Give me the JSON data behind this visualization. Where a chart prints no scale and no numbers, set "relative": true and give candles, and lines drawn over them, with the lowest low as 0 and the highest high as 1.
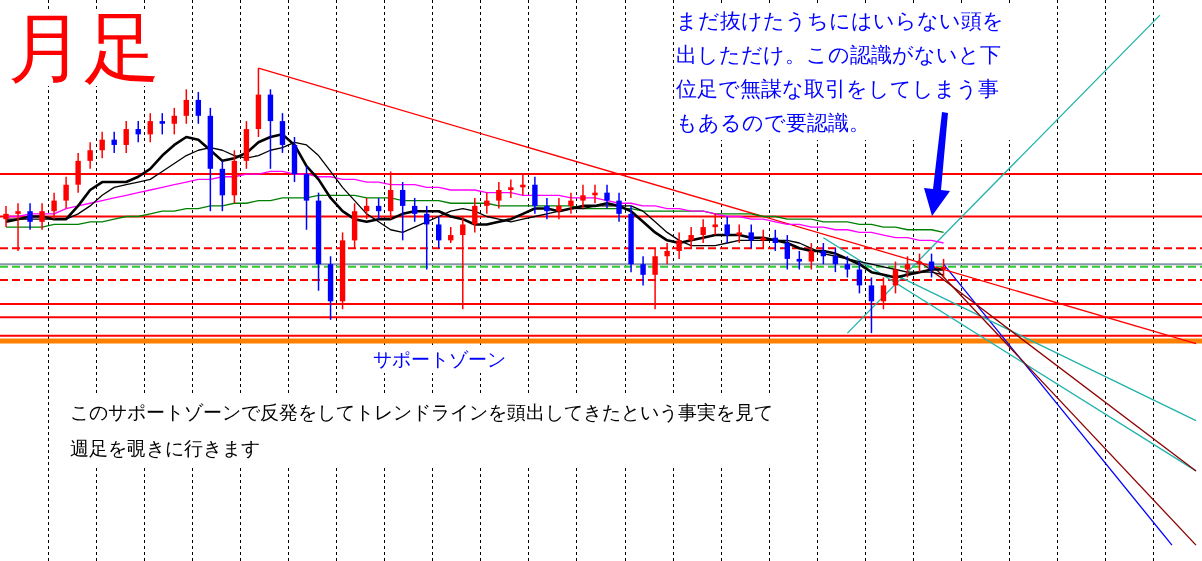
{
  "chart_data": {
    "type": "candlestick",
    "title": "月足",
    "relative": true,
    "grid": "x",
    "legend": false,
    "categories": [
      null,
      null,
      null,
      null,
      null,
      null,
      null,
      null,
      null,
      null,
      null,
      null,
      null,
      null,
      null,
      null,
      null,
      null,
      null,
      null,
      null,
      null,
      null,
      null,
      null,
      null,
      null,
      null,
      null,
      null,
      null,
      null,
      null,
      null,
      null,
      null,
      null,
      null,
      null,
      null,
      null,
      null,
      null,
      null,
      null,
      null,
      null,
      null,
      null,
      null,
      null,
      null,
      null,
      null,
      null,
      null,
      null,
      null,
      null,
      null,
      null,
      null,
      null,
      null,
      null,
      null,
      null,
      null,
      null,
      null,
      null,
      null,
      null,
      null,
      null,
      null,
      null,
      null,
      null,
      null,
      null,
      null,
      null,
      null,
      null,
      null,
      null,
      null,
      null,
      null,
      null,
      null,
      null,
      null,
      null,
      null,
      null,
      null,
      null,
      null
    ],
    "ohlc": [
      [
        0.43,
        0.48,
        0.4,
        0.45
      ],
      [
        0.45,
        0.49,
        0.31,
        0.46
      ],
      [
        0.46,
        0.49,
        0.39,
        0.42
      ],
      [
        0.42,
        0.49,
        0.39,
        0.46
      ],
      [
        0.46,
        0.53,
        0.43,
        0.5
      ],
      [
        0.5,
        0.59,
        0.47,
        0.56
      ],
      [
        0.56,
        0.68,
        0.53,
        0.65
      ],
      [
        0.65,
        0.72,
        0.62,
        0.69
      ],
      [
        0.69,
        0.76,
        0.66,
        0.73
      ],
      [
        0.73,
        0.76,
        0.68,
        0.71
      ],
      [
        0.71,
        0.8,
        0.68,
        0.77
      ],
      [
        0.77,
        0.8,
        0.72,
        0.75
      ],
      [
        0.75,
        0.83,
        0.72,
        0.8
      ],
      [
        0.8,
        0.83,
        0.75,
        0.79
      ],
      [
        0.79,
        0.85,
        0.75,
        0.82
      ],
      [
        0.82,
        0.92,
        0.79,
        0.88
      ],
      [
        0.88,
        0.91,
        0.79,
        0.82
      ],
      [
        0.82,
        0.85,
        0.46,
        0.62
      ],
      [
        0.62,
        0.65,
        0.46,
        0.52
      ],
      [
        0.52,
        0.69,
        0.49,
        0.65
      ],
      [
        0.65,
        0.8,
        0.62,
        0.77
      ],
      [
        0.77,
        1.0,
        0.74,
        0.9
      ],
      [
        0.9,
        0.92,
        0.62,
        0.8
      ],
      [
        0.8,
        0.83,
        0.68,
        0.71
      ],
      [
        0.71,
        0.74,
        0.57,
        0.6
      ],
      [
        0.6,
        0.63,
        0.39,
        0.5
      ],
      [
        0.5,
        0.53,
        0.16,
        0.26
      ],
      [
        0.26,
        0.29,
        0.05,
        0.12
      ],
      [
        0.12,
        0.38,
        0.09,
        0.35
      ],
      [
        0.35,
        0.49,
        0.32,
        0.46
      ],
      [
        0.46,
        0.51,
        0.43,
        0.48
      ],
      [
        0.48,
        0.51,
        0.43,
        0.46
      ],
      [
        0.46,
        0.61,
        0.43,
        0.54
      ],
      [
        0.54,
        0.57,
        0.35,
        0.48
      ],
      [
        0.48,
        0.51,
        0.42,
        0.45
      ],
      [
        0.45,
        0.48,
        0.24,
        0.41
      ],
      [
        0.41,
        0.44,
        0.32,
        0.35
      ],
      [
        0.35,
        0.4,
        0.34,
        0.37
      ],
      [
        0.37,
        0.44,
        0.09,
        0.41
      ],
      [
        0.41,
        0.51,
        0.38,
        0.48
      ],
      [
        0.48,
        0.53,
        0.45,
        0.5
      ],
      [
        0.5,
        0.57,
        0.47,
        0.54
      ],
      [
        0.54,
        0.58,
        0.51,
        0.55
      ],
      [
        0.55,
        0.6,
        0.52,
        0.56
      ],
      [
        0.56,
        0.59,
        0.45,
        0.48
      ],
      [
        0.48,
        0.51,
        0.43,
        0.46
      ],
      [
        0.46,
        0.51,
        0.43,
        0.48
      ],
      [
        0.48,
        0.53,
        0.45,
        0.5
      ],
      [
        0.5,
        0.56,
        0.47,
        0.52
      ],
      [
        0.52,
        0.56,
        0.49,
        0.53
      ],
      [
        0.53,
        0.56,
        0.47,
        0.5
      ],
      [
        0.5,
        0.53,
        0.42,
        0.45
      ],
      [
        0.45,
        0.48,
        0.23,
        0.26
      ],
      [
        0.26,
        0.29,
        0.18,
        0.22
      ],
      [
        0.22,
        0.32,
        0.09,
        0.29
      ],
      [
        0.29,
        0.34,
        0.26,
        0.31
      ],
      [
        0.31,
        0.38,
        0.28,
        0.35
      ],
      [
        0.35,
        0.4,
        0.32,
        0.37
      ],
      [
        0.37,
        0.43,
        0.34,
        0.4
      ],
      [
        0.4,
        0.45,
        0.37,
        0.41
      ],
      [
        0.41,
        0.44,
        0.34,
        0.37
      ],
      [
        0.37,
        0.41,
        0.34,
        0.38
      ],
      [
        0.38,
        0.41,
        0.32,
        0.35
      ],
      [
        0.35,
        0.39,
        0.32,
        0.36
      ],
      [
        0.36,
        0.39,
        0.31,
        0.34
      ],
      [
        0.34,
        0.37,
        0.24,
        0.28
      ],
      [
        0.28,
        0.31,
        0.24,
        0.27
      ],
      [
        0.27,
        0.34,
        0.24,
        0.31
      ],
      [
        0.31,
        0.34,
        0.26,
        0.29
      ],
      [
        0.29,
        0.32,
        0.23,
        0.26
      ],
      [
        0.26,
        0.29,
        0.21,
        0.24
      ],
      [
        0.24,
        0.27,
        0.15,
        0.18
      ],
      [
        0.18,
        0.21,
        0.0,
        0.12
      ],
      [
        0.12,
        0.21,
        0.09,
        0.18
      ],
      [
        0.18,
        0.27,
        0.15,
        0.24
      ],
      [
        0.24,
        0.29,
        0.21,
        0.26
      ],
      [
        0.26,
        0.3,
        0.23,
        0.27
      ],
      [
        0.27,
        0.3,
        0.21,
        0.24
      ],
      [
        0.24,
        0.28,
        0.21,
        0.25
      ],
      null,
      null,
      null,
      null,
      null,
      null,
      null,
      null,
      null,
      null,
      null,
      null,
      null,
      null,
      null,
      null,
      null,
      null,
      null,
      null,
      null
    ],
    "colors": [
      "#ff0000",
      "#ff0000",
      "#0000ff",
      "#ff0000",
      "#ff0000",
      "#ff0000",
      "#ff0000",
      "#ff0000",
      "#ff0000",
      "#0000ff",
      "#ff0000",
      "#0000ff",
      "#ff0000",
      "#0000ff",
      "#ff0000",
      "#ff0000",
      "#0000ff",
      "#0000ff",
      "#0000ff",
      "#ff0000",
      "#ff0000",
      "#ff0000",
      "#0000ff",
      "#0000ff",
      "#0000ff",
      "#0000ff",
      "#0000ff",
      "#0000ff",
      "#ff0000",
      "#ff0000",
      "#ff0000",
      "#0000ff",
      "#ff0000",
      "#0000ff",
      "#0000ff",
      "#0000ff",
      "#0000ff",
      "#ff0000",
      "#ff0000",
      "#ff0000",
      "#ff0000",
      "#ff0000",
      "#ff0000",
      "#ff0000",
      "#0000ff",
      "#0000ff",
      "#ff0000",
      "#ff0000",
      "#ff0000",
      "#ff0000",
      "#0000ff",
      "#0000ff",
      "#0000ff",
      "#0000ff",
      "#ff0000",
      "#ff0000",
      "#ff0000",
      "#ff0000",
      "#ff0000",
      "#ff0000",
      "#0000ff",
      "#ff0000",
      "#0000ff",
      "#ff0000",
      "#0000ff",
      "#0000ff",
      "#0000ff",
      "#ff0000",
      "#0000ff",
      "#0000ff",
      "#0000ff",
      "#0000ff",
      "#0000ff",
      "#ff0000",
      "#ff0000",
      "#ff0000",
      "#ff0000",
      "#0000ff",
      "#ff0000",
      null,
      null,
      null,
      null,
      null,
      null,
      null,
      null,
      null,
      null,
      null,
      null,
      null,
      null,
      null,
      null,
      null,
      null,
      null,
      null,
      null
    ],
    "series": [
      {
        "type": "line",
        "color": "#000000",
        "values": [
          0.42,
          0.43,
          0.44,
          0.44,
          0.43,
          0.43,
          0.48,
          0.54,
          0.57,
          0.57,
          0.57,
          0.59,
          0.62,
          0.67,
          0.71,
          0.74,
          0.73,
          0.69,
          0.65,
          0.66,
          0.68,
          0.72,
          0.74,
          0.75,
          0.71,
          0.63,
          0.58,
          0.51,
          0.46,
          0.43,
          0.42,
          0.43,
          0.43,
          0.45,
          0.46,
          0.46,
          0.46,
          0.44,
          0.43,
          0.41,
          0.41,
          0.42,
          0.43,
          0.45,
          0.47,
          0.47,
          0.46,
          0.47,
          0.48,
          0.48,
          0.49,
          0.48,
          0.46,
          0.42,
          0.38,
          0.35,
          0.34,
          0.35,
          0.36,
          0.37,
          0.37,
          0.37,
          0.36,
          0.36,
          0.35,
          0.34,
          0.32,
          0.31,
          0.31,
          0.3,
          0.28,
          0.26,
          0.23,
          0.22,
          0.21,
          0.22,
          0.23,
          0.24,
          0.24,
          null,
          null,
          null,
          null,
          null,
          null,
          null,
          null,
          null,
          null,
          null,
          null,
          null,
          null,
          null,
          null,
          null,
          null,
          null,
          null,
          null
        ]
      },
      {
        "type": "line",
        "color": "#000000",
        "values": [
          0.43,
          0.43,
          0.43,
          0.43,
          0.43,
          0.43,
          0.45,
          0.48,
          0.52,
          0.55,
          0.56,
          0.57,
          0.58,
          0.61,
          0.64,
          0.67,
          0.69,
          0.7,
          0.69,
          0.67,
          0.66,
          0.67,
          0.69,
          0.7,
          0.72,
          0.71,
          0.67,
          0.61,
          0.55,
          0.5,
          0.45,
          0.42,
          0.39,
          0.38,
          0.4,
          0.42,
          0.44,
          0.46,
          0.47,
          0.46,
          0.44,
          0.43,
          0.42,
          0.43,
          0.44,
          0.45,
          0.46,
          0.47,
          0.47,
          0.48,
          0.48,
          0.48,
          0.48,
          0.46,
          0.42,
          0.38,
          0.35,
          0.33,
          0.33,
          0.33,
          0.34,
          0.35,
          0.35,
          0.35,
          0.35,
          0.35,
          0.34,
          0.32,
          0.3,
          0.29,
          0.28,
          0.27,
          0.26,
          0.25,
          0.24,
          0.23,
          0.23,
          0.23,
          0.22,
          null,
          null,
          null,
          null,
          null,
          null,
          null,
          null,
          null,
          null,
          null,
          null,
          null,
          null,
          null,
          null,
          null,
          null,
          null,
          null,
          null
        ]
      },
      {
        "type": "line",
        "color": "#ff00ff",
        "values": [
          0.44,
          0.44,
          0.45,
          0.45,
          0.45,
          0.47,
          0.48,
          0.49,
          0.5,
          0.51,
          0.52,
          0.53,
          0.54,
          0.55,
          0.56,
          0.57,
          0.58,
          0.58,
          0.59,
          0.59,
          0.6,
          0.6,
          0.61,
          0.61,
          0.6,
          0.6,
          0.59,
          0.59,
          0.58,
          0.58,
          0.57,
          0.57,
          0.56,
          0.56,
          0.56,
          0.55,
          0.55,
          0.54,
          0.54,
          0.54,
          0.53,
          0.53,
          0.53,
          0.52,
          0.52,
          0.52,
          0.52,
          0.51,
          0.51,
          0.51,
          0.5,
          0.49,
          0.49,
          0.48,
          0.48,
          0.47,
          0.47,
          0.46,
          0.46,
          0.45,
          0.44,
          0.44,
          0.43,
          0.43,
          0.42,
          0.41,
          0.41,
          0.4,
          0.4,
          0.39,
          0.39,
          0.38,
          0.38,
          0.37,
          0.36,
          0.36,
          0.35,
          0.35,
          0.34,
          null,
          null,
          null,
          null,
          null,
          null,
          null,
          null,
          null,
          null,
          null,
          null,
          null,
          null,
          null,
          null,
          null,
          null,
          null,
          null,
          null
        ]
      },
      {
        "type": "line",
        "color": "#008000",
        "values": [
          0.4,
          0.4,
          0.4,
          0.4,
          0.41,
          0.41,
          0.41,
          0.42,
          0.42,
          0.43,
          0.44,
          0.44,
          0.45,
          0.46,
          0.46,
          0.47,
          0.47,
          0.48,
          0.48,
          0.49,
          0.49,
          0.5,
          0.5,
          0.51,
          0.51,
          0.51,
          0.52,
          0.52,
          0.52,
          0.52,
          0.51,
          0.51,
          0.51,
          0.5,
          0.5,
          0.5,
          0.5,
          0.49,
          0.49,
          0.49,
          0.49,
          0.48,
          0.48,
          0.48,
          0.48,
          0.48,
          0.48,
          0.48,
          0.47,
          0.47,
          0.47,
          0.47,
          0.47,
          0.46,
          0.46,
          0.46,
          0.46,
          0.46,
          0.46,
          0.45,
          0.45,
          0.45,
          0.45,
          0.44,
          0.44,
          0.43,
          0.43,
          0.43,
          0.42,
          0.42,
          0.42,
          0.41,
          0.41,
          0.4,
          0.4,
          0.39,
          0.39,
          0.39,
          0.38,
          null,
          null,
          null,
          null,
          null,
          null,
          null,
          null,
          null,
          null,
          null,
          null,
          null,
          null,
          null,
          null,
          null,
          null,
          null,
          null,
          null
        ]
      },
      {
        "type": "line",
        "color": "#ff0000",
        "values": [
          null,
          null,
          null,
          null,
          null,
          null,
          null,
          null,
          null,
          null,
          null,
          null,
          null,
          null,
          null,
          null,
          null,
          null,
          null,
          null,
          null,
          1.0,
          null,
          null,
          null,
          null,
          null,
          null,
          null,
          null,
          null,
          null,
          null,
          null,
          null,
          null,
          null,
          null,
          null,
          null,
          null,
          null,
          null,
          null,
          null,
          null,
          null,
          null,
          null,
          null,
          null,
          null,
          null,
          null,
          null,
          null,
          null,
          null,
          null,
          null,
          null,
          null,
          null,
          null,
          null,
          null,
          null,
          null,
          null,
          null,
          null,
          null,
          null,
          null,
          null,
          null,
          null,
          null,
          null,
          null,
          null,
          null,
          null,
          null,
          null,
          null,
          null,
          null,
          null,
          null,
          null,
          null,
          null,
          null,
          null,
          null,
          null,
          null,
          null,
          -0.04
        ]
      },
      {
        "type": "line",
        "color": "#8b0000",
        "values": [
          null,
          null,
          null,
          null,
          null,
          null,
          null,
          null,
          null,
          null,
          null,
          null,
          null,
          null,
          null,
          null,
          null,
          null,
          null,
          null,
          null,
          null,
          null,
          null,
          null,
          null,
          null,
          null,
          null,
          null,
          null,
          null,
          null,
          null,
          null,
          null,
          null,
          null,
          null,
          null,
          null,
          null,
          null,
          null,
          null,
          null,
          null,
          null,
          null,
          null,
          null,
          null,
          null,
          null,
          null,
          null,
          null,
          null,
          null,
          null,
          null,
          null,
          null,
          null,
          null,
          null,
          null,
          null,
          null,
          null,
          null,
          null,
          null,
          null,
          null,
          null,
          0.27,
          null,
          null,
          null,
          null,
          null,
          null,
          null,
          null,
          null,
          null,
          null,
          null,
          null,
          null,
          null,
          null,
          null,
          null,
          null,
          null,
          null,
          null,
          -0.52
        ]
      },
      {
        "type": "line",
        "color": "#8b0000",
        "values": [
          null,
          null,
          null,
          null,
          null,
          null,
          null,
          null,
          null,
          null,
          null,
          null,
          null,
          null,
          null,
          null,
          null,
          null,
          null,
          null,
          null,
          null,
          null,
          null,
          null,
          null,
          null,
          null,
          null,
          null,
          null,
          null,
          null,
          null,
          null,
          null,
          null,
          null,
          null,
          null,
          null,
          null,
          null,
          null,
          null,
          null,
          null,
          null,
          null,
          null,
          null,
          null,
          null,
          null,
          null,
          null,
          null,
          null,
          null,
          null,
          null,
          null,
          null,
          null,
          null,
          null,
          null,
          null,
          null,
          null,
          null,
          null,
          null,
          null,
          null,
          null,
          null,
          0.26,
          null,
          null,
          null,
          null,
          null,
          null,
          null,
          null,
          null,
          null,
          null,
          null,
          null,
          null,
          null,
          null,
          null,
          null,
          null,
          null,
          null,
          -0.8
        ]
      },
      {
        "type": "line",
        "color": "#20b2aa",
        "values": [
          null,
          null,
          null,
          null,
          null,
          null,
          null,
          null,
          null,
          null,
          null,
          null,
          null,
          null,
          null,
          null,
          null,
          null,
          null,
          null,
          null,
          null,
          null,
          null,
          null,
          null,
          null,
          null,
          null,
          null,
          null,
          null,
          null,
          null,
          null,
          null,
          null,
          null,
          null,
          null,
          null,
          null,
          null,
          null,
          null,
          null,
          null,
          null,
          null,
          null,
          null,
          null,
          null,
          null,
          null,
          null,
          null,
          null,
          null,
          null,
          null,
          null,
          null,
          null,
          null,
          null,
          null,
          null,
          null,
          null,
          0.0,
          null,
          null,
          null,
          null,
          null,
          null,
          null,
          null,
          null,
          null,
          null,
          null,
          null,
          null,
          null,
          null,
          null,
          null,
          null,
          null,
          null,
          null,
          null,
          null,
          null,
          1.2,
          null,
          null,
          null
        ]
      },
      {
        "type": "line",
        "color": "#20b2aa",
        "values": [
          null,
          null,
          null,
          null,
          null,
          null,
          null,
          null,
          null,
          null,
          null,
          null,
          null,
          null,
          null,
          null,
          null,
          null,
          null,
          null,
          null,
          null,
          null,
          null,
          null,
          null,
          null,
          null,
          null,
          null,
          null,
          null,
          null,
          null,
          null,
          null,
          null,
          null,
          null,
          null,
          null,
          null,
          null,
          null,
          null,
          null,
          null,
          null,
          null,
          null,
          null,
          null,
          null,
          null,
          null,
          null,
          null,
          null,
          null,
          null,
          null,
          null,
          null,
          null,
          null,
          null,
          null,
          null,
          0.36,
          null,
          null,
          null,
          null,
          null,
          null,
          null,
          null,
          null,
          null,
          null,
          null,
          null,
          null,
          null,
          null,
          null,
          null,
          null,
          null,
          null,
          null,
          null,
          null,
          null,
          null,
          null,
          null,
          null,
          null,
          -0.52
        ]
      },
      {
        "type": "line",
        "color": "#20b2aa",
        "values": [
          null,
          null,
          null,
          null,
          null,
          null,
          null,
          null,
          null,
          null,
          null,
          null,
          null,
          null,
          null,
          null,
          null,
          null,
          null,
          null,
          null,
          null,
          null,
          null,
          null,
          null,
          null,
          null,
          null,
          null,
          null,
          null,
          null,
          null,
          null,
          null,
          null,
          null,
          null,
          null,
          null,
          null,
          null,
          null,
          null,
          null,
          null,
          null,
          null,
          null,
          null,
          null,
          null,
          null,
          null,
          null,
          null,
          null,
          null,
          null,
          null,
          null,
          null,
          null,
          null,
          null,
          null,
          null,
          null,
          null,
          null,
          null,
          null,
          null,
          0.22,
          null,
          null,
          null,
          null,
          null,
          null,
          null,
          null,
          null,
          null,
          null,
          null,
          null,
          null,
          null,
          null,
          null,
          null,
          null,
          null,
          null,
          null,
          null,
          null,
          -0.33
        ]
      },
      {
        "type": "line",
        "color": "#0000ff",
        "values": [
          null,
          null,
          null,
          null,
          null,
          null,
          null,
          null,
          null,
          null,
          null,
          null,
          null,
          null,
          null,
          null,
          null,
          null,
          null,
          null,
          null,
          null,
          null,
          null,
          null,
          null,
          null,
          null,
          null,
          null,
          null,
          null,
          null,
          null,
          null,
          null,
          null,
          null,
          null,
          null,
          null,
          null,
          null,
          null,
          null,
          null,
          null,
          null,
          null,
          null,
          null,
          null,
          null,
          null,
          null,
          null,
          null,
          null,
          null,
          null,
          null,
          null,
          null,
          null,
          null,
          null,
          null,
          null,
          null,
          null,
          null,
          null,
          null,
          null,
          null,
          null,
          null,
          null,
          0.26,
          null,
          null,
          null,
          null,
          null,
          null,
          null,
          null,
          null,
          null,
          null,
          null,
          null,
          null,
          null,
          null,
          null,
          null,
          -0.8,
          null,
          null
        ]
      }
    ],
    "ref_lines": [
      {
        "axis": "y",
        "value": 0.6,
        "color": "#ff0000",
        "line_style": "solid"
      },
      {
        "axis": "y",
        "value": 0.44,
        "color": "#ff0000",
        "line_style": "solid"
      },
      {
        "axis": "y",
        "value": 0.32,
        "color": "#ff0000",
        "line_style": "dashed"
      },
      {
        "axis": "y",
        "value": 0.26,
        "color": "#8899aa",
        "line_style": "solid"
      },
      {
        "axis": "y",
        "value": 0.25,
        "color": "#33cc33",
        "line_style": "dashed"
      },
      {
        "axis": "y",
        "value": 0.2,
        "color": "#ff0000",
        "line_style": "dashed"
      },
      {
        "axis": "y",
        "value": 0.11,
        "color": "#ff0000",
        "line_style": "solid"
      },
      {
        "axis": "y",
        "value": 0.06,
        "color": "#ff0000",
        "line_style": "solid"
      },
      {
        "axis": "y",
        "value": -0.01,
        "color": "#ff0000",
        "line_style": "solid"
      },
      {
        "axis": "y",
        "value": -0.03,
        "color": "#ff8000",
        "line_style": "solid",
        "label": "サポートゾーン"
      }
    ],
    "annotations": [
      "まだ抜けたうちにはいらない頭を出しただけ。この認識がないと下位足で無謀な取引をしてしまう事もあるので要認識。",
      "このサポートゾーンで反発をしてトレンドラインを頭出してきたという事実を見て週足を覗きに行きます"
    ]
  }
}
